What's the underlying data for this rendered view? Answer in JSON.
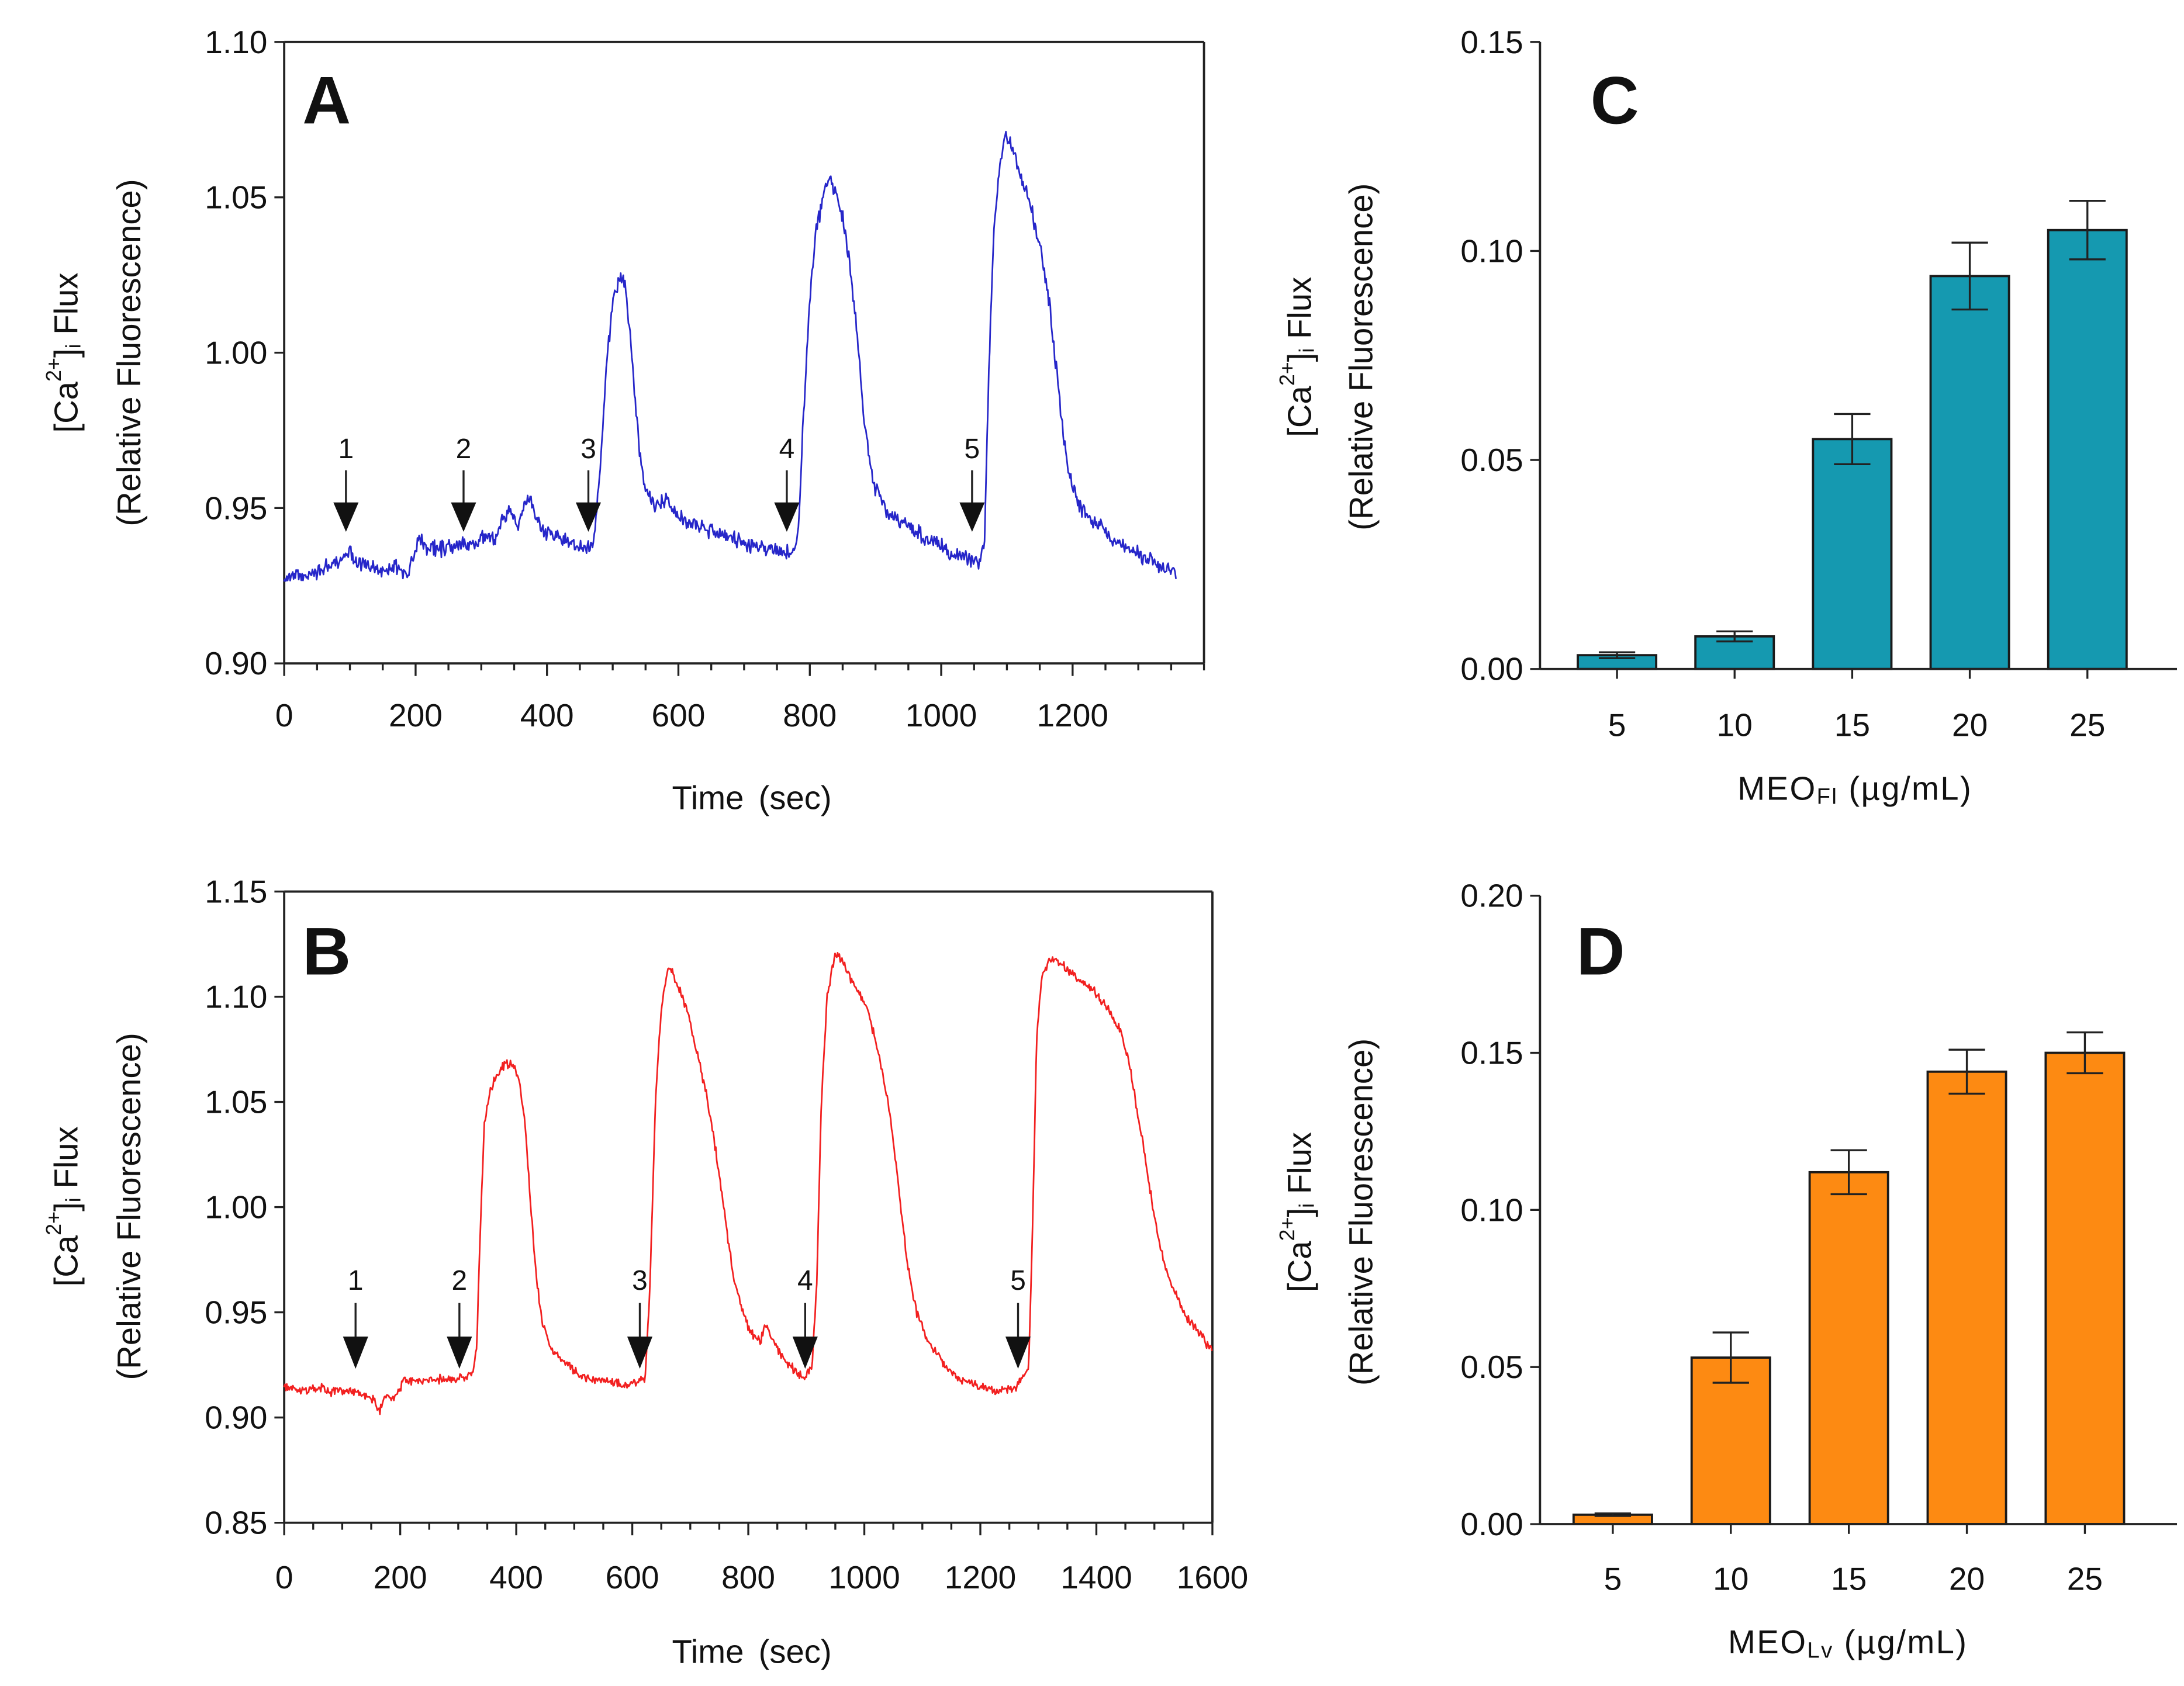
{
  "chart_data": [
    {
      "type": "line",
      "panel_label": "A",
      "ylabel": {
        "prefix": "[Ca",
        "sup": "2+",
        "mid": "]",
        "sub": "i",
        "suffix": " Flux",
        "line2": "(Relative Fluorescence)"
      },
      "xlabel": "Time (sec)",
      "xlim": [
        0,
        1400
      ],
      "ylim": [
        0.9,
        1.1
      ],
      "x_ticks": [
        "0",
        "200",
        "400",
        "600",
        "800",
        "1000",
        "1200"
      ],
      "x_minor_step": 50,
      "y_ticks": [
        "0.90",
        "0.95",
        "1.00",
        "1.05",
        "1.10"
      ],
      "color": "#2626c9",
      "arrows": [
        {
          "label": "1",
          "time": 94
        },
        {
          "label": "2",
          "time": 273
        },
        {
          "label": "3",
          "time": 463
        },
        {
          "label": "4",
          "time": 765
        },
        {
          "label": "5",
          "time": 1047
        }
      ],
      "points": [
        [
          0,
          0.926
        ],
        [
          10,
          0.929
        ],
        [
          30,
          0.928
        ],
        [
          50,
          0.93
        ],
        [
          70,
          0.931
        ],
        [
          88,
          0.933
        ],
        [
          98,
          0.937
        ],
        [
          110,
          0.933
        ],
        [
          130,
          0.931
        ],
        [
          150,
          0.93
        ],
        [
          170,
          0.931
        ],
        [
          185,
          0.929
        ],
        [
          195,
          0.933
        ],
        [
          205,
          0.94
        ],
        [
          220,
          0.937
        ],
        [
          240,
          0.937
        ],
        [
          260,
          0.938
        ],
        [
          280,
          0.939
        ],
        [
          300,
          0.94
        ],
        [
          320,
          0.94
        ],
        [
          335,
          0.948
        ],
        [
          345,
          0.95
        ],
        [
          355,
          0.945
        ],
        [
          365,
          0.951
        ],
        [
          375,
          0.953
        ],
        [
          385,
          0.946
        ],
        [
          400,
          0.942
        ],
        [
          420,
          0.94
        ],
        [
          440,
          0.938
        ],
        [
          460,
          0.937
        ],
        [
          472,
          0.94
        ],
        [
          480,
          0.96
        ],
        [
          490,
          0.995
        ],
        [
          500,
          1.016
        ],
        [
          510,
          1.024
        ],
        [
          518,
          1.022
        ],
        [
          526,
          1.008
        ],
        [
          534,
          0.985
        ],
        [
          542,
          0.965
        ],
        [
          552,
          0.955
        ],
        [
          565,
          0.95
        ],
        [
          578,
          0.953
        ],
        [
          592,
          0.949
        ],
        [
          610,
          0.946
        ],
        [
          640,
          0.943
        ],
        [
          670,
          0.941
        ],
        [
          700,
          0.939
        ],
        [
          730,
          0.937
        ],
        [
          755,
          0.936
        ],
        [
          775,
          0.935
        ],
        [
          782,
          0.94
        ],
        [
          790,
          0.978
        ],
        [
          800,
          1.018
        ],
        [
          810,
          1.04
        ],
        [
          820,
          1.05
        ],
        [
          830,
          1.056
        ],
        [
          840,
          1.051
        ],
        [
          850,
          1.043
        ],
        [
          860,
          1.03
        ],
        [
          870,
          1.01
        ],
        [
          880,
          0.985
        ],
        [
          890,
          0.966
        ],
        [
          900,
          0.956
        ],
        [
          920,
          0.948
        ],
        [
          950,
          0.944
        ],
        [
          980,
          0.94
        ],
        [
          1010,
          0.936
        ],
        [
          1040,
          0.934
        ],
        [
          1060,
          0.933
        ],
        [
          1066,
          0.94
        ],
        [
          1072,
          0.99
        ],
        [
          1080,
          1.04
        ],
        [
          1090,
          1.062
        ],
        [
          1098,
          1.07
        ],
        [
          1108,
          1.065
        ],
        [
          1120,
          1.058
        ],
        [
          1135,
          1.048
        ],
        [
          1150,
          1.035
        ],
        [
          1165,
          1.015
        ],
        [
          1175,
          0.995
        ],
        [
          1185,
          0.975
        ],
        [
          1195,
          0.96
        ],
        [
          1210,
          0.951
        ],
        [
          1230,
          0.946
        ],
        [
          1260,
          0.94
        ],
        [
          1290,
          0.936
        ],
        [
          1320,
          0.933
        ],
        [
          1345,
          0.93
        ],
        [
          1358,
          0.929
        ]
      ]
    },
    {
      "type": "line",
      "panel_label": "B",
      "ylabel": {
        "prefix": "[Ca",
        "sup": "2+",
        "mid": "]",
        "sub": "i",
        "suffix": " Flux",
        "line2": "(Relative Fluorescence)"
      },
      "xlabel": "Time (sec)",
      "xlim": [
        0,
        1600
      ],
      "ylim": [
        0.85,
        1.15
      ],
      "x_ticks": [
        "0",
        "200",
        "400",
        "600",
        "800",
        "1000",
        "1200",
        "1400",
        "1600"
      ],
      "x_minor_step": 50,
      "y_ticks": [
        "0.85",
        "0.90",
        "0.95",
        "1.00",
        "1.05",
        "1.10",
        "1.15"
      ],
      "color": "#f22020",
      "arrows": [
        {
          "label": "1",
          "time": 123
        },
        {
          "label": "2",
          "time": 302
        },
        {
          "label": "3",
          "time": 613
        },
        {
          "label": "4",
          "time": 898
        },
        {
          "label": "5",
          "time": 1265
        }
      ],
      "points": [
        [
          0,
          0.915
        ],
        [
          20,
          0.914
        ],
        [
          40,
          0.913
        ],
        [
          60,
          0.914
        ],
        [
          80,
          0.912
        ],
        [
          100,
          0.913
        ],
        [
          120,
          0.912
        ],
        [
          140,
          0.911
        ],
        [
          155,
          0.908
        ],
        [
          165,
          0.903
        ],
        [
          175,
          0.91
        ],
        [
          190,
          0.909
        ],
        [
          198,
          0.912
        ],
        [
          205,
          0.918
        ],
        [
          230,
          0.917
        ],
        [
          260,
          0.918
        ],
        [
          290,
          0.918
        ],
        [
          310,
          0.919
        ],
        [
          325,
          0.921
        ],
        [
          332,
          0.935
        ],
        [
          338,
          0.99
        ],
        [
          345,
          1.04
        ],
        [
          355,
          1.055
        ],
        [
          365,
          1.062
        ],
        [
          380,
          1.068
        ],
        [
          395,
          1.068
        ],
        [
          405,
          1.06
        ],
        [
          415,
          1.04
        ],
        [
          425,
          1.0
        ],
        [
          435,
          0.965
        ],
        [
          445,
          0.945
        ],
        [
          460,
          0.933
        ],
        [
          480,
          0.927
        ],
        [
          500,
          0.922
        ],
        [
          530,
          0.918
        ],
        [
          560,
          0.917
        ],
        [
          590,
          0.916
        ],
        [
          610,
          0.917
        ],
        [
          622,
          0.918
        ],
        [
          630,
          0.96
        ],
        [
          640,
          1.05
        ],
        [
          650,
          1.095
        ],
        [
          662,
          1.115
        ],
        [
          675,
          1.108
        ],
        [
          693,
          1.095
        ],
        [
          710,
          1.075
        ],
        [
          729,
          1.052
        ],
        [
          745,
          1.025
        ],
        [
          760,
          0.995
        ],
        [
          775,
          0.965
        ],
        [
          790,
          0.95
        ],
        [
          805,
          0.94
        ],
        [
          820,
          0.936
        ],
        [
          830,
          0.944
        ],
        [
          840,
          0.938
        ],
        [
          855,
          0.93
        ],
        [
          870,
          0.925
        ],
        [
          885,
          0.921
        ],
        [
          898,
          0.919
        ],
        [
          910,
          0.924
        ],
        [
          918,
          0.965
        ],
        [
          926,
          1.05
        ],
        [
          936,
          1.1
        ],
        [
          950,
          1.121
        ],
        [
          965,
          1.115
        ],
        [
          985,
          1.104
        ],
        [
          1006,
          1.094
        ],
        [
          1025,
          1.072
        ],
        [
          1042,
          1.048
        ],
        [
          1055,
          1.02
        ],
        [
          1065,
          0.995
        ],
        [
          1075,
          0.972
        ],
        [
          1090,
          0.95
        ],
        [
          1110,
          0.936
        ],
        [
          1135,
          0.926
        ],
        [
          1165,
          0.918
        ],
        [
          1195,
          0.915
        ],
        [
          1225,
          0.913
        ],
        [
          1255,
          0.913
        ],
        [
          1270,
          0.917
        ],
        [
          1283,
          0.922
        ],
        [
          1290,
          0.99
        ],
        [
          1297,
          1.08
        ],
        [
          1306,
          1.11
        ],
        [
          1320,
          1.118
        ],
        [
          1340,
          1.116
        ],
        [
          1360,
          1.11
        ],
        [
          1392,
          1.104
        ],
        [
          1420,
          1.094
        ],
        [
          1441,
          1.084
        ],
        [
          1455,
          1.07
        ],
        [
          1465,
          1.055
        ],
        [
          1477,
          1.035
        ],
        [
          1489,
          1.015
        ],
        [
          1500,
          0.995
        ],
        [
          1513,
          0.978
        ],
        [
          1525,
          0.966
        ],
        [
          1537,
          0.958
        ],
        [
          1555,
          0.948
        ],
        [
          1573,
          0.942
        ],
        [
          1590,
          0.935
        ],
        [
          1600,
          0.932
        ]
      ]
    },
    {
      "type": "bar",
      "panel_label": "C",
      "ylabel": {
        "prefix": "[Ca",
        "sup": "2+",
        "mid": "]",
        "sub": "i",
        "suffix": " Flux",
        "line2": "(Relative Fluorescence)"
      },
      "xlabel": {
        "prefix": "MEO",
        "sub": "Fl",
        "suffix": " (µg/mL)"
      },
      "ylim": [
        0,
        0.15
      ],
      "y_ticks": [
        "0.00",
        "0.05",
        "0.10",
        "0.15"
      ],
      "categories": [
        "5",
        "10",
        "15",
        "20",
        "25"
      ],
      "values": [
        0.0033,
        0.0078,
        0.055,
        0.094,
        0.105
      ],
      "errors": [
        0.0007,
        0.0012,
        0.006,
        0.008,
        0.007
      ],
      "color": "#1599b0"
    },
    {
      "type": "bar",
      "panel_label": "D",
      "ylabel": {
        "prefix": "[Ca",
        "sup": "2+",
        "mid": "]",
        "sub": "i",
        "suffix": " Flux",
        "line2": "(Relative Fluorescence)"
      },
      "xlabel": {
        "prefix": "MEO",
        "sub": "Lv",
        "suffix": " (µg/mL)"
      },
      "ylim": [
        0,
        0.2
      ],
      "y_ticks": [
        "0.00",
        "0.05",
        "0.10",
        "0.15",
        "0.20"
      ],
      "categories": [
        "5",
        "10",
        "15",
        "20",
        "25"
      ],
      "values": [
        0.003,
        0.053,
        0.112,
        0.144,
        0.15
      ],
      "errors": [
        0.0004,
        0.008,
        0.007,
        0.007,
        0.0065
      ],
      "color": "#fd8a12"
    }
  ]
}
